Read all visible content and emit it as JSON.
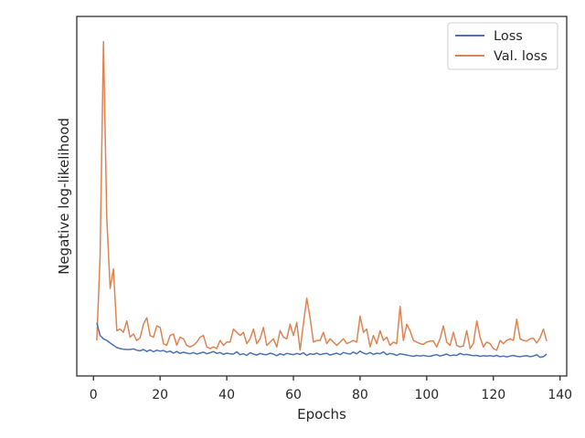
{
  "chart_data": {
    "type": "line",
    "xlabel": "Epochs",
    "ylabel": "Negative log-likelihood",
    "xlim": [
      -5,
      142
    ],
    "ylim": [
      0.0,
      1.0
    ],
    "xticks": [
      0,
      20,
      40,
      60,
      80,
      100,
      120,
      140
    ],
    "yticks": [],
    "grid": false,
    "legend_position": "top-right",
    "series": [
      {
        "name": "Loss",
        "color": "#4c72b0",
        "x": [
          1,
          2,
          3,
          4,
          5,
          6,
          7,
          8,
          9,
          10,
          11,
          12,
          13,
          14,
          15,
          16,
          17,
          18,
          19,
          20,
          21,
          22,
          23,
          24,
          25,
          26,
          27,
          28,
          29,
          30,
          31,
          32,
          33,
          34,
          35,
          36,
          37,
          38,
          39,
          40,
          41,
          42,
          43,
          44,
          45,
          46,
          47,
          48,
          49,
          50,
          51,
          52,
          53,
          54,
          55,
          56,
          57,
          58,
          59,
          60,
          61,
          62,
          63,
          64,
          65,
          66,
          67,
          68,
          69,
          70,
          71,
          72,
          73,
          74,
          75,
          76,
          77,
          78,
          79,
          80,
          81,
          82,
          83,
          84,
          85,
          86,
          87,
          88,
          89,
          90,
          91,
          92,
          93,
          94,
          95,
          96,
          97,
          98,
          99,
          100,
          101,
          102,
          103,
          104,
          105,
          106,
          107,
          108,
          109,
          110,
          111,
          112,
          113,
          114,
          115,
          116,
          117,
          118,
          119,
          120,
          121,
          122,
          123,
          124,
          125,
          126,
          127,
          128,
          129,
          130,
          131,
          132,
          133,
          134,
          135,
          136
        ],
        "y": [
          0.125,
          0.085,
          0.075,
          0.07,
          0.062,
          0.055,
          0.048,
          0.045,
          0.043,
          0.042,
          0.042,
          0.044,
          0.04,
          0.038,
          0.042,
          0.036,
          0.041,
          0.035,
          0.04,
          0.037,
          0.039,
          0.034,
          0.037,
          0.031,
          0.036,
          0.03,
          0.034,
          0.031,
          0.029,
          0.033,
          0.028,
          0.031,
          0.034,
          0.029,
          0.032,
          0.036,
          0.03,
          0.033,
          0.027,
          0.031,
          0.029,
          0.028,
          0.035,
          0.026,
          0.029,
          0.024,
          0.032,
          0.028,
          0.025,
          0.03,
          0.027,
          0.026,
          0.031,
          0.028,
          0.023,
          0.029,
          0.025,
          0.03,
          0.028,
          0.026,
          0.03,
          0.027,
          0.032,
          0.024,
          0.029,
          0.027,
          0.031,
          0.026,
          0.029,
          0.03,
          0.025,
          0.028,
          0.031,
          0.026,
          0.033,
          0.03,
          0.028,
          0.034,
          0.029,
          0.037,
          0.031,
          0.028,
          0.033,
          0.027,
          0.031,
          0.029,
          0.035,
          0.026,
          0.03,
          0.028,
          0.024,
          0.029,
          0.027,
          0.025,
          0.023,
          0.021,
          0.024,
          0.022,
          0.024,
          0.022,
          0.021,
          0.024,
          0.026,
          0.022,
          0.025,
          0.028,
          0.023,
          0.025,
          0.024,
          0.03,
          0.026,
          0.027,
          0.025,
          0.023,
          0.024,
          0.021,
          0.023,
          0.022,
          0.023,
          0.021,
          0.024,
          0.02,
          0.022,
          0.019,
          0.022,
          0.024,
          0.021,
          0.02,
          0.022,
          0.023,
          0.02,
          0.022,
          0.026,
          0.018,
          0.02,
          0.028
        ]
      },
      {
        "name": "Val. loss",
        "color": "#dd8452",
        "x": [
          1,
          2,
          3,
          4,
          5,
          6,
          7,
          8,
          9,
          10,
          11,
          12,
          13,
          14,
          15,
          16,
          17,
          18,
          19,
          20,
          21,
          22,
          23,
          24,
          25,
          26,
          27,
          28,
          29,
          30,
          31,
          32,
          33,
          34,
          35,
          36,
          37,
          38,
          39,
          40,
          41,
          42,
          43,
          44,
          45,
          46,
          47,
          48,
          49,
          50,
          51,
          52,
          53,
          54,
          55,
          56,
          57,
          58,
          59,
          60,
          61,
          62,
          63,
          64,
          65,
          66,
          67,
          68,
          69,
          70,
          71,
          72,
          73,
          74,
          75,
          76,
          77,
          78,
          79,
          80,
          81,
          82,
          83,
          84,
          85,
          86,
          87,
          88,
          89,
          90,
          91,
          92,
          93,
          94,
          95,
          96,
          97,
          98,
          99,
          100,
          101,
          102,
          103,
          104,
          105,
          106,
          107,
          108,
          109,
          110,
          111,
          112,
          113,
          114,
          115,
          116,
          117,
          118,
          119,
          120,
          121,
          122,
          123,
          124,
          125,
          126,
          127,
          128,
          129,
          130,
          131,
          132,
          133,
          134,
          135,
          136
        ],
        "y": [
          0.07,
          0.33,
          0.99,
          0.45,
          0.23,
          0.29,
          0.1,
          0.105,
          0.095,
          0.13,
          0.08,
          0.09,
          0.07,
          0.078,
          0.12,
          0.14,
          0.085,
          0.08,
          0.115,
          0.11,
          0.06,
          0.055,
          0.085,
          0.09,
          0.055,
          0.08,
          0.075,
          0.055,
          0.05,
          0.055,
          0.065,
          0.08,
          0.085,
          0.05,
          0.045,
          0.05,
          0.045,
          0.07,
          0.055,
          0.065,
          0.065,
          0.105,
          0.095,
          0.085,
          0.095,
          0.06,
          0.075,
          0.105,
          0.06,
          0.075,
          0.11,
          0.055,
          0.065,
          0.075,
          0.05,
          0.1,
          0.08,
          0.075,
          0.12,
          0.085,
          0.125,
          0.04,
          0.12,
          0.2,
          0.14,
          0.065,
          0.07,
          0.07,
          0.095,
          0.06,
          0.075,
          0.065,
          0.055,
          0.065,
          0.075,
          0.06,
          0.065,
          0.07,
          0.065,
          0.145,
          0.095,
          0.105,
          0.05,
          0.085,
          0.06,
          0.1,
          0.07,
          0.08,
          0.055,
          0.065,
          0.06,
          0.175,
          0.07,
          0.12,
          0.1,
          0.07,
          0.065,
          0.06,
          0.058,
          0.065,
          0.068,
          0.068,
          0.05,
          0.075,
          0.115,
          0.065,
          0.055,
          0.095,
          0.055,
          0.05,
          0.053,
          0.1,
          0.045,
          0.06,
          0.13,
          0.08,
          0.05,
          0.065,
          0.06,
          0.045,
          0.04,
          0.07,
          0.06,
          0.07,
          0.075,
          0.07,
          0.135,
          0.075,
          0.07,
          0.068,
          0.075,
          0.077,
          0.062,
          0.078,
          0.105,
          0.068
        ]
      }
    ]
  }
}
